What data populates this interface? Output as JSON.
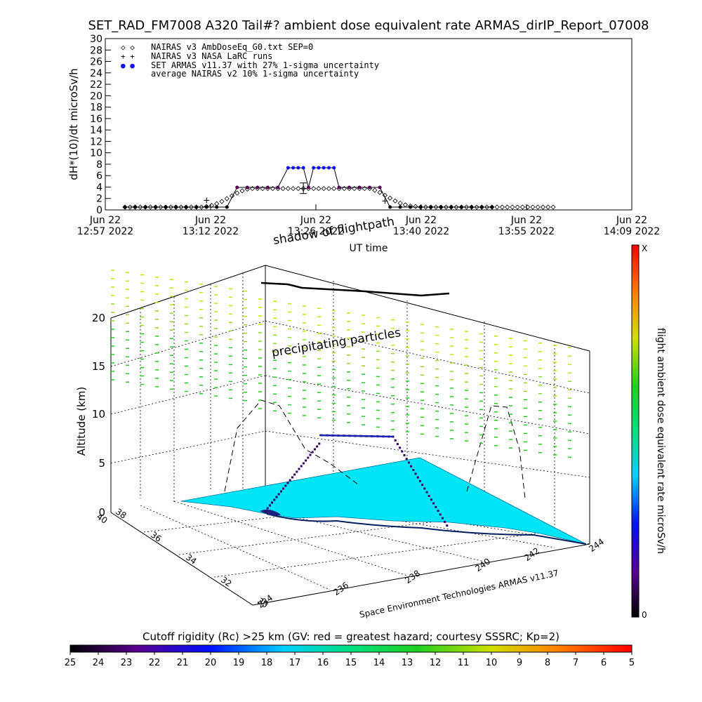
{
  "title": "SET_RAD_FM7008  A320 Tail#? ambient dose equivalent rate ARMAS_dirIP_Report_07008",
  "chart_data": [
    {
      "type": "line",
      "ylabel": "dH*(10)/dt microSv/h",
      "xlabel": "UT time",
      "ylim": [
        0,
        30
      ],
      "yticks": [
        "0",
        "2",
        "4",
        "6",
        "8",
        "10",
        "12",
        "14",
        "16",
        "18",
        "20",
        "22",
        "24",
        "26",
        "28",
        "30"
      ],
      "xticks": [
        {
          "line1": "Jun 22",
          "line2": "12:57 2022"
        },
        {
          "line1": "Jun 22",
          "line2": "13:12 2022"
        },
        {
          "line1": "Jun 22",
          "line2": "13:26 2022"
        },
        {
          "line1": "Jun 22",
          "line2": "13:40 2022"
        },
        {
          "line1": "Jun 22",
          "line2": "13:55 2022"
        },
        {
          "line1": "Jun 22",
          "line2": "14:09 2022"
        }
      ],
      "legend": [
        {
          "marker": "◇ ◇",
          "label": "NAIRAS v3 AmbDoseEq_G0.txt SEP=0"
        },
        {
          "marker": "+ +",
          "label": "NAIRAS v3 NASA LaRC runs"
        },
        {
          "marker": "● ●",
          "label": "SET ARMAS v11.37 with 27% 1-sigma uncertainty"
        },
        {
          "marker": "",
          "label": "average NAIRAS v2 10% 1-sigma uncertainty"
        }
      ],
      "legend_position": "top-left",
      "series": [
        {
          "name": "NAIRAS v3 AmbDoseEq_G0.txt SEP=0",
          "x": [
            0,
            1,
            2,
            3,
            4,
            5,
            6,
            7,
            8,
            9,
            10,
            11,
            12,
            13,
            14,
            15,
            16,
            17,
            18,
            19,
            20,
            21,
            22,
            23,
            24,
            25,
            26,
            27,
            28,
            29,
            30,
            31,
            32,
            33,
            34,
            35,
            36,
            37,
            38,
            39,
            40,
            41,
            42,
            43,
            44,
            45,
            46,
            47,
            48,
            49,
            50,
            51,
            52,
            53,
            54,
            55,
            56,
            57,
            58,
            59,
            60,
            61,
            62,
            63,
            64,
            65,
            66,
            67,
            68,
            69,
            70,
            71,
            72,
            73,
            74,
            75,
            76,
            77,
            78,
            79,
            80,
            81,
            82,
            83,
            84
          ],
          "y": [
            0,
            0,
            0,
            0,
            0,
            0,
            0,
            0,
            0,
            0,
            0,
            0,
            0,
            0,
            0,
            0,
            0.1,
            0.3,
            0.6,
            1.0,
            1.5,
            2.0,
            2.5,
            2.9,
            3.2,
            3.3,
            3.3,
            3.3,
            3.3,
            3.3,
            3.3,
            3.3,
            3.3,
            3.3,
            3.3,
            3.3,
            3.3,
            3.3,
            3.3,
            3.3,
            3.3,
            3.3,
            3.3,
            3.3,
            3.3,
            3.3,
            3.3,
            3.3,
            3.3,
            3.0,
            2.6,
            2.1,
            1.6,
            1.1,
            0.7,
            0.4,
            0.2,
            0.1,
            0,
            0,
            0,
            0,
            0,
            0,
            0,
            0,
            0,
            0,
            0,
            0,
            0,
            0,
            0,
            0,
            0,
            0,
            0,
            0,
            0,
            0,
            0,
            0,
            0,
            0,
            0
          ]
        },
        {
          "name": "NAIRAS v3 NASA LaRC runs",
          "x": [
            16,
            35,
            51
          ],
          "y": [
            1.2,
            3.3,
            1.1
          ]
        },
        {
          "name": "SET ARMAS v11.37 with 27% 1-sigma uncertainty",
          "x": [
            0,
            2,
            4,
            6,
            8,
            10,
            12,
            14,
            16,
            18,
            20,
            22,
            24,
            26,
            28,
            30,
            32,
            33,
            34,
            35,
            36,
            37,
            38,
            39,
            40,
            41,
            42,
            44,
            46,
            48,
            50,
            52,
            54,
            56,
            58,
            60,
            62,
            64,
            66,
            68,
            70,
            72
          ],
          "y": [
            0,
            0,
            0,
            0,
            0,
            0,
            0,
            0,
            0,
            0,
            0,
            3.5,
            3.5,
            3.5,
            3.5,
            3.5,
            7,
            7,
            7,
            7,
            3.5,
            7,
            7,
            7,
            7,
            7,
            3.5,
            3.5,
            3.5,
            3.5,
            3.5,
            0,
            0,
            0,
            0,
            0,
            0,
            0,
            0,
            0,
            0,
            0
          ]
        }
      ],
      "xrange": [
        0,
        84
      ],
      "grid": false
    },
    {
      "type": "scatter",
      "title": "",
      "zlabel": "Altitude (km)",
      "zticks": [
        "0",
        "5",
        "10",
        "15",
        "20"
      ],
      "lat_ticks": [
        "30",
        "32",
        "34",
        "36",
        "38",
        "40"
      ],
      "lon_ticks": [
        "234",
        "236",
        "238",
        "240",
        "242",
        "244"
      ],
      "annotations": [
        "precipitating particles",
        "shadow of flightpath"
      ],
      "credit": "Space Environment Technologies ARMAS v11.37",
      "colorbar_label": "flight ambient dose equivalent rate microSv/h",
      "colorbar_range": [
        "0",
        "X"
      ]
    }
  ],
  "colorbar_bottom": {
    "label": "Cutoff rigidity (Rc) >25 km (GV: red = greatest hazard; courtesy SSSRC; Kp=2)",
    "ticks": [
      "25",
      "24",
      "23",
      "22",
      "21",
      "20",
      "19",
      "18",
      "17",
      "16",
      "15",
      "14",
      "13",
      "12",
      "11",
      "10",
      "9",
      "8",
      "7",
      "6",
      "5"
    ]
  },
  "colors": {
    "surface": "#00e5f5",
    "flight_dark": "#330066",
    "armas_blue": "#1010ff",
    "particles_green": "#22cc22",
    "particles_yellow": "#c8e000"
  }
}
